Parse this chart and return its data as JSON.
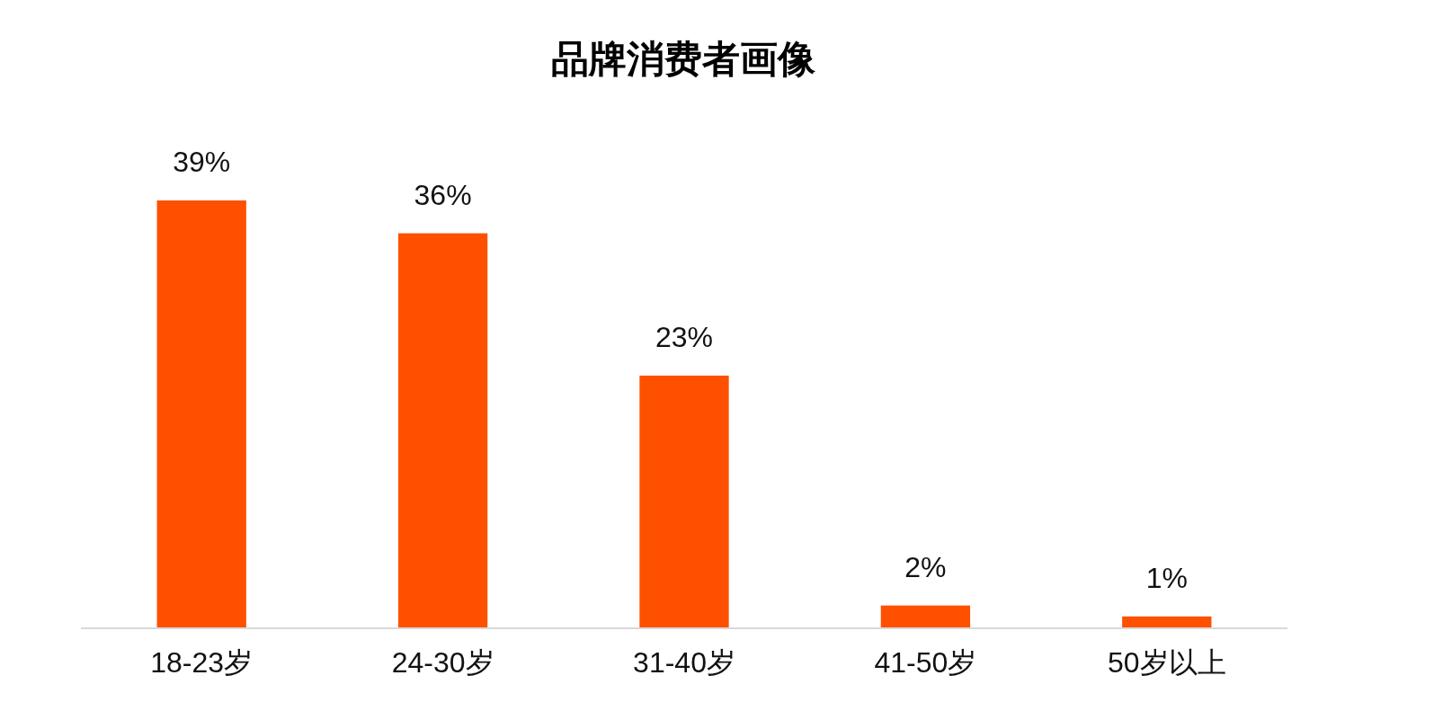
{
  "chart_data": {
    "type": "bar",
    "title": "品牌消费者画像",
    "categories": [
      "18-23岁",
      "24-30岁",
      "31-40岁",
      "41-50岁",
      "50岁以上"
    ],
    "values": [
      39,
      36,
      23,
      2,
      1
    ],
    "color": "#ff5000",
    "value_labels": [
      "39%",
      "36%",
      "23%",
      "2%",
      "1%"
    ]
  }
}
